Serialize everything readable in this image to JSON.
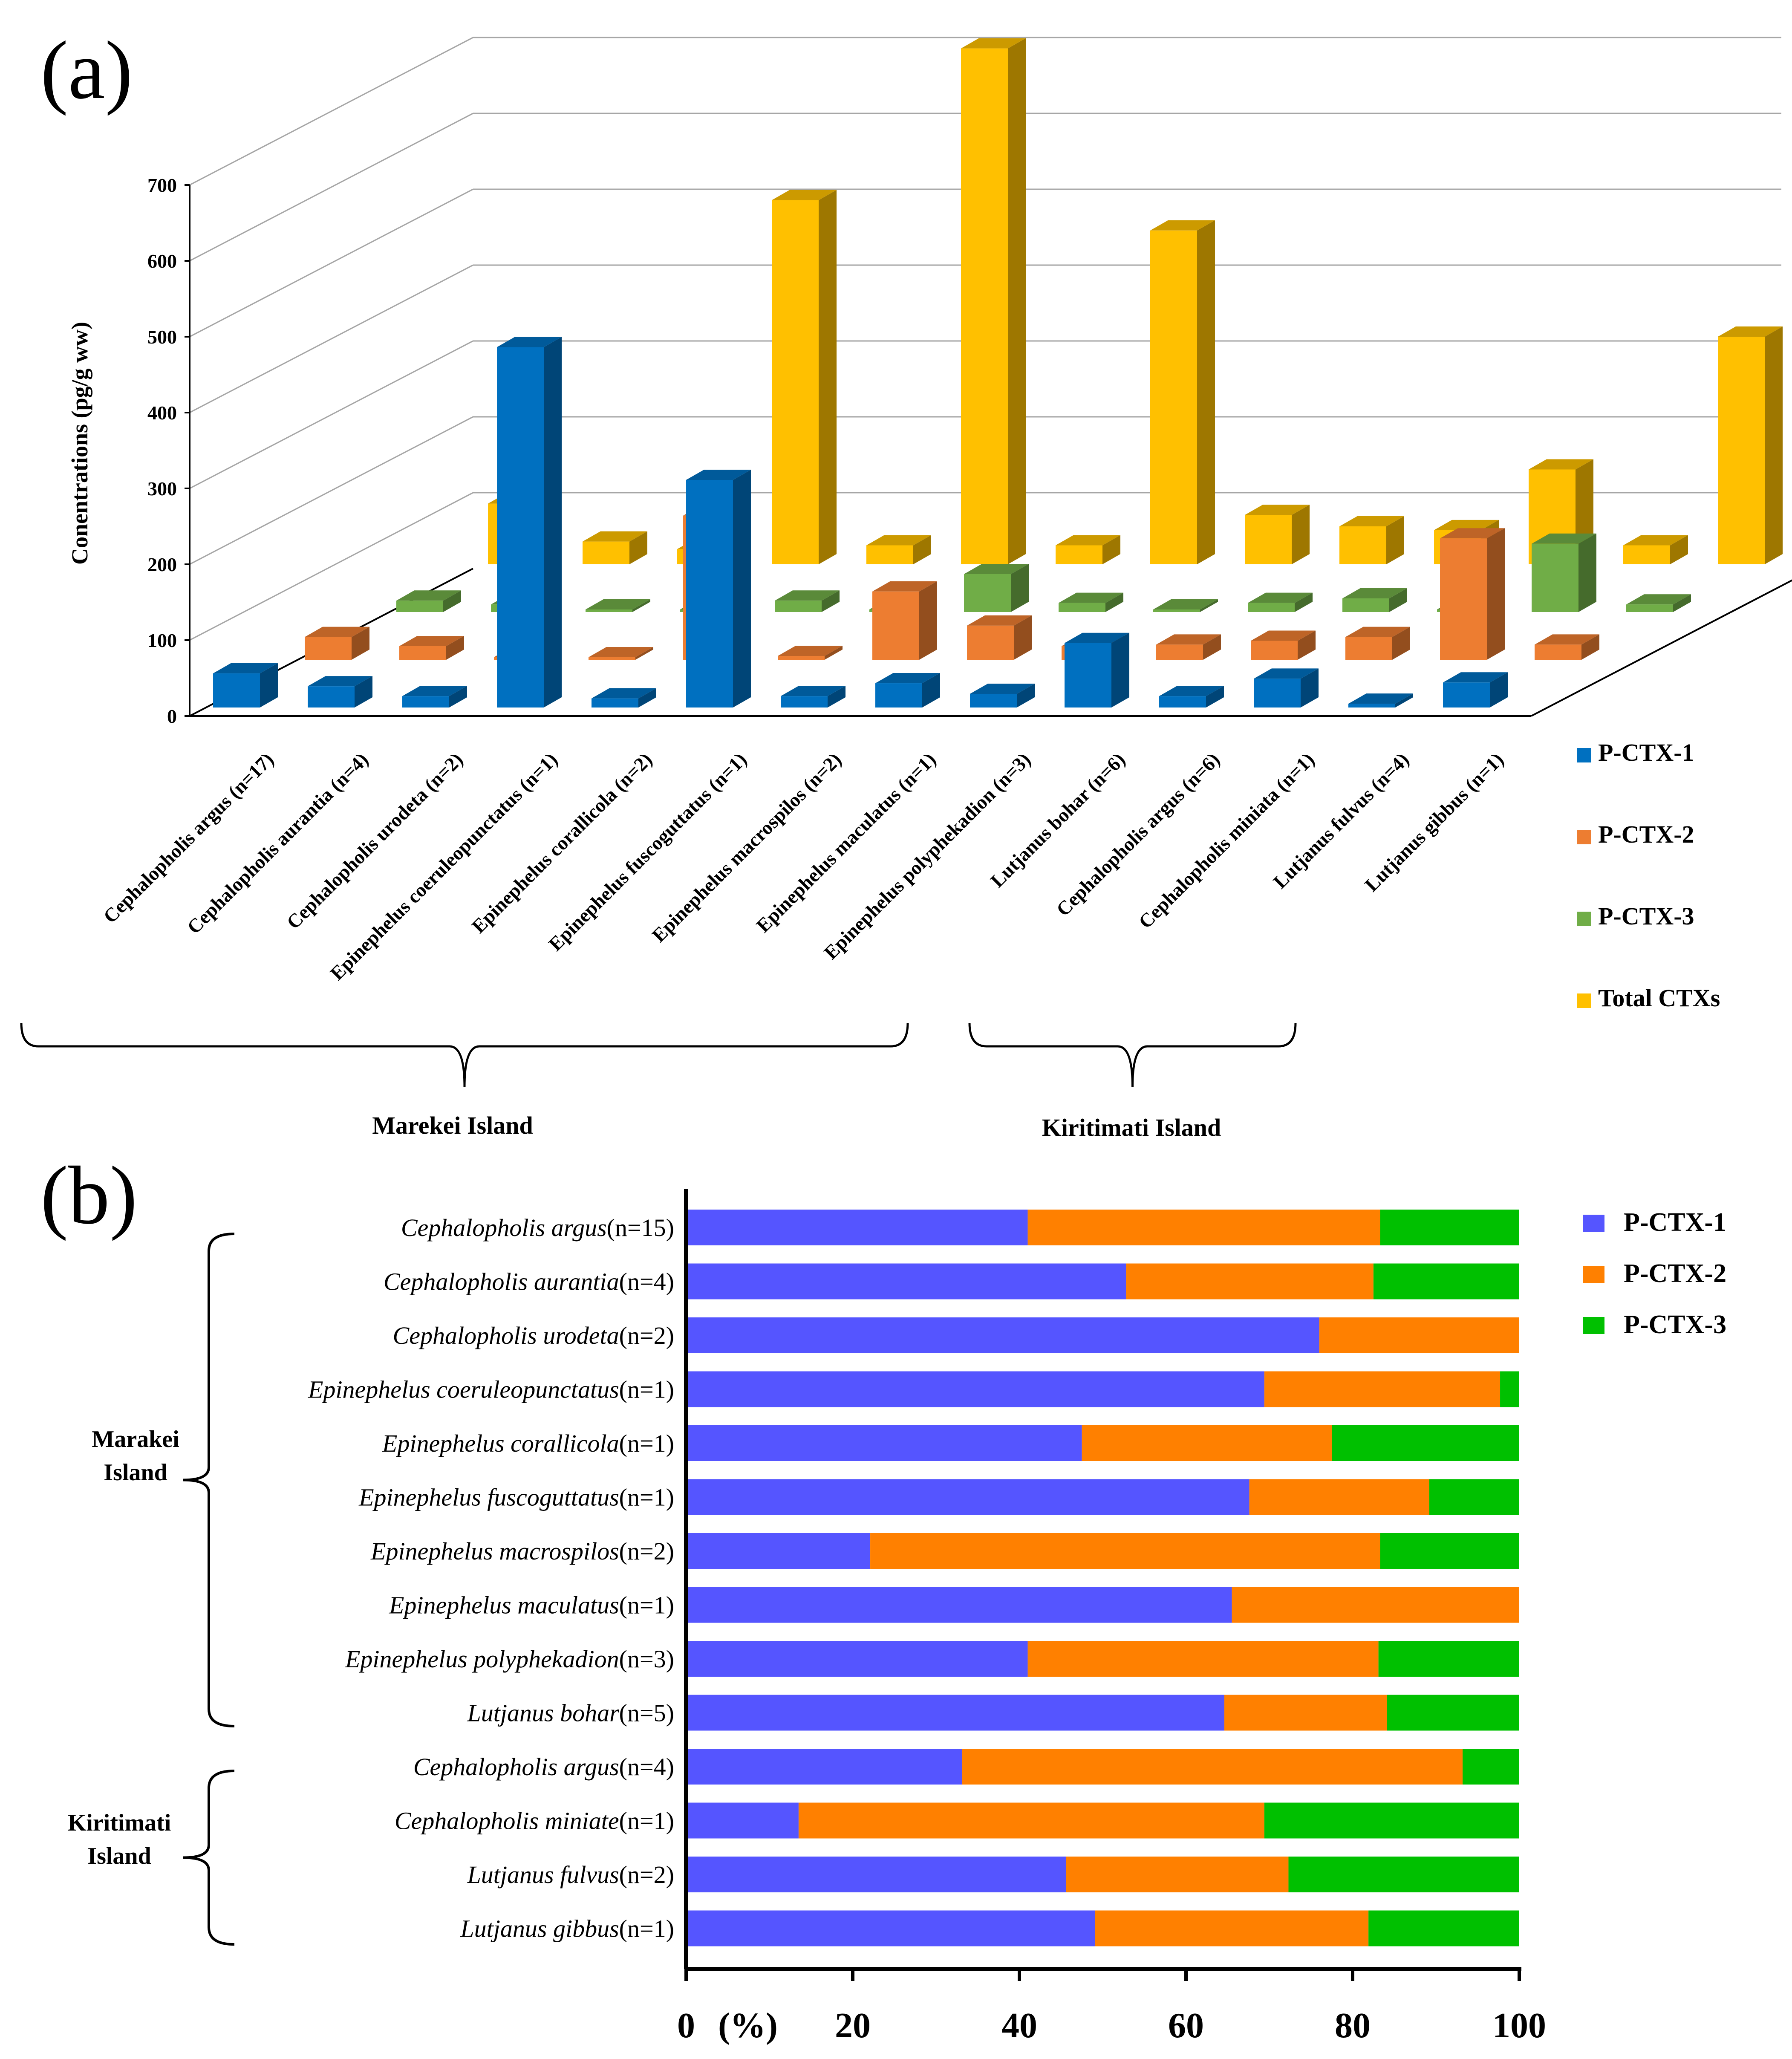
{
  "chart_data": [
    {
      "panel_label": "(a)",
      "type": "bar",
      "ylabel": "Conentrations (pg/g ww)",
      "ylim": [
        0,
        700
      ],
      "yticks": [
        "0",
        "100",
        "200",
        "300",
        "400",
        "500",
        "600",
        "700"
      ],
      "categories": [
        "Cephalopholis argus (n=17)",
        "Cephalopholis aurantia (n=4)",
        "Cephalopholis urodeta (n=2)",
        "Epinephelus coeruleopunctatus (n=1)",
        "Epinephelus corallicola (n=2)",
        "Epinephelus fuscoguttatus (n=1)",
        "Epinephelus macrospilos (n=2)",
        "Epinephelus maculatus (n=1)",
        "Epinephelus polyphekadion (n=3)",
        "Lutjanus bohar (n=6)",
        "Cephalopholis argus (n=6)",
        "Cephalopholis miniata (n=1)",
        "Lutjanus fulvus (n=4)",
        "Lutjanus gibbus (n=1)"
      ],
      "series": [
        {
          "name": "P-CTX-1",
          "color": "#0070c0",
          "values": [
            45,
            28,
            15,
            475,
            12,
            300,
            15,
            32,
            18,
            85,
            15,
            38,
            5,
            33
          ]
        },
        {
          "name": "P-CTX-2",
          "color": "#ed7d31",
          "values": [
            30,
            18,
            3,
            0,
            190,
            5,
            90,
            45,
            18,
            20,
            25,
            30,
            160,
            20
          ]
        },
        {
          "name": "P-CTX-3",
          "color": "#70ad47",
          "values": [
            15,
            10,
            0,
            0,
            15,
            0,
            50,
            12,
            0,
            12,
            18,
            3,
            90,
            10
          ]
        },
        {
          "name": "Total CTXs",
          "color": "#ffc000",
          "values": [
            80,
            30,
            20,
            480,
            25,
            680,
            25,
            440,
            65,
            50,
            45,
            125,
            25,
            300
          ]
        }
      ],
      "legend": {
        "items": [
          "P-CTX-1",
          "P-CTX-2",
          "P-CTX-3",
          "Total CTXs"
        ],
        "placement": "right"
      },
      "groups": [
        {
          "label": "Marekei Island",
          "from": 0,
          "to": 8
        },
        {
          "label": "Kiritimati Island",
          "from": 9,
          "to": 12
        }
      ]
    },
    {
      "panel_label": "(b)",
      "type": "bar",
      "orientation": "horizontal",
      "stacked": true,
      "xlabel": "(%)",
      "xlim": [
        0,
        100
      ],
      "xticks": [
        "0",
        "20",
        "40",
        "60",
        "80",
        "100"
      ],
      "categories": [
        {
          "species": "Cephalopholis argus",
          "n": "(n=15)"
        },
        {
          "species": "Cephalopholis aurantia",
          "n": "(n=4)"
        },
        {
          "species": "Cephalopholis urodeta",
          "n": "(n=2)"
        },
        {
          "species": "Epinephelus coeruleopunctatus",
          "n": "(n=1)"
        },
        {
          "species": "Epinephelus corallicola",
          "n": "(n=1)"
        },
        {
          "species": "Epinephelus fuscoguttatus",
          "n": "(n=1)"
        },
        {
          "species": "Epinephelus macrospilos",
          "n": "(n=2)"
        },
        {
          "species": "Epinephelus maculatus",
          "n": "(n=1)"
        },
        {
          "species": "Epinephelus polyphekadion",
          "n": "(n=3)"
        },
        {
          "species": "Lutjanus bohar",
          "n": "(n=5)"
        },
        {
          "species": "Cephalopholis argus",
          "n": "(n=4)"
        },
        {
          "species": "Cephalopholis miniate",
          "n": "(n=1)"
        },
        {
          "species": "Lutjanus fulvus",
          "n": "(n=2)"
        },
        {
          "species": "Lutjanus gibbus",
          "n": "(n=1)"
        }
      ],
      "series": [
        {
          "name": "P-CTX-1",
          "color": "#5555ff",
          "values": [
            41,
            52.8,
            76,
            69.4,
            47.5,
            67.6,
            22.1,
            65.5,
            41,
            64.6,
            33.1,
            13.5,
            45.6,
            49.1
          ]
        },
        {
          "name": "P-CTX-2",
          "color": "#ff8000",
          "values": [
            42.3,
            29.7,
            24,
            28.3,
            30,
            21.6,
            61.2,
            34.5,
            42.1,
            19.5,
            60.1,
            55.9,
            26.7,
            32.8
          ]
        },
        {
          "name": "P-CTX-3",
          "color": "#00c000",
          "values": [
            16.7,
            17.5,
            0,
            2.3,
            22.5,
            10.8,
            16.7,
            0,
            16.9,
            15.9,
            6.8,
            30.6,
            27.7,
            18.1
          ]
        }
      ],
      "legend": {
        "items": [
          "P-CTX-1",
          "P-CTX-2",
          "P-CTX-3"
        ],
        "placement": "top-right"
      },
      "groups": [
        {
          "label": [
            "Marakei",
            "Island"
          ],
          "from": 0,
          "to": 9
        },
        {
          "label": [
            "Kiritimati",
            "Island"
          ],
          "from": 10,
          "to": 13
        }
      ]
    }
  ]
}
